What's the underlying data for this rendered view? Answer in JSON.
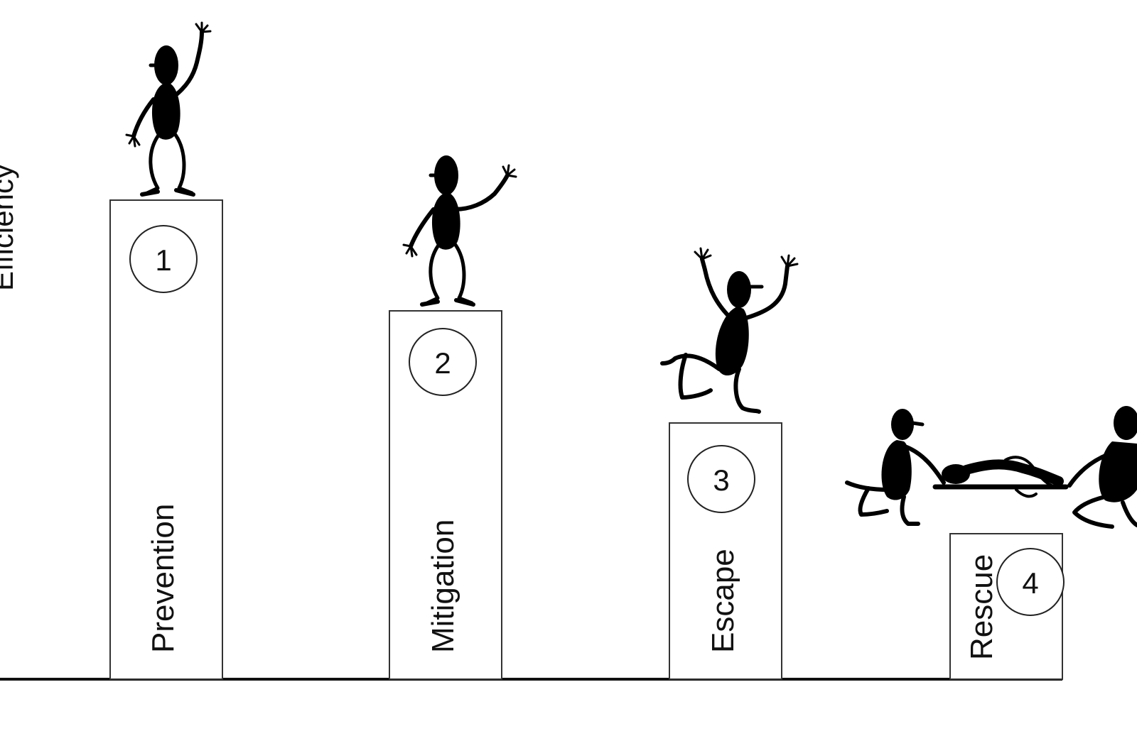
{
  "y_axis_label": "Efficiency",
  "stages": [
    {
      "number": "1",
      "label": "Prevention"
    },
    {
      "number": "2",
      "label": "Mitigation"
    },
    {
      "number": "3",
      "label": "Escape"
    },
    {
      "number": "4",
      "label": "Rescue"
    }
  ],
  "figures": [
    {
      "pose": "standing-waving-figure"
    },
    {
      "pose": "standing-waving-figure"
    },
    {
      "pose": "jumping-figure"
    },
    {
      "pose": "stretcher-carrying-figures"
    }
  ]
}
